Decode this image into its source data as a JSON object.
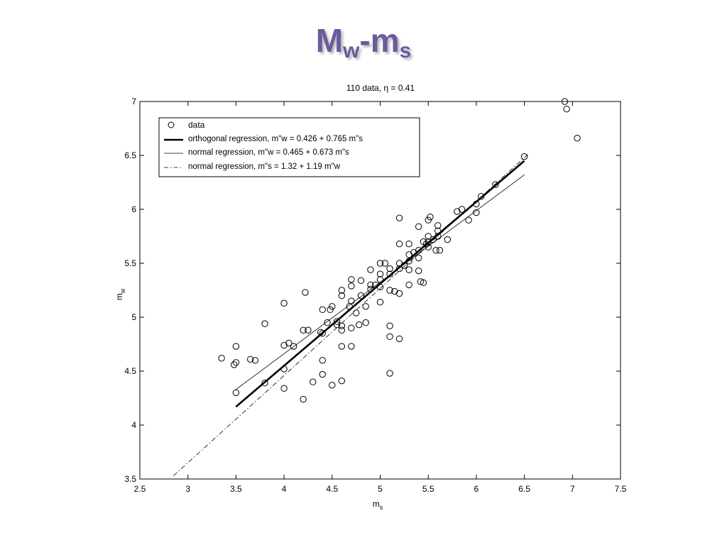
{
  "slide": {
    "title_main": "M",
    "title_sub1": "w",
    "title_mid": "-m",
    "title_sub2": "s"
  },
  "chart_data": {
    "type": "scatter",
    "title": "110 data, η = 0.41",
    "xlabel": "m",
    "xlabel_sub": "s",
    "ylabel": "m",
    "ylabel_sub": "w",
    "xlim": [
      2.5,
      7.5
    ],
    "ylim": [
      3.5,
      7
    ],
    "xticks": [
      "2.5",
      "3",
      "3.5",
      "4",
      "4.5",
      "5",
      "5.5",
      "6",
      "6.5",
      "7",
      "7.5"
    ],
    "yticks": [
      "3.5",
      "4",
      "4.5",
      "5",
      "5.5",
      "6",
      "6.5",
      "7"
    ],
    "grid": false,
    "legend_position": "top-left",
    "legend": [
      {
        "label": "data",
        "style": "marker-circle"
      },
      {
        "label": "orthogonal regression, m\"w = 0.426 + 0.765 m\"s",
        "style": "thick-solid"
      },
      {
        "label": "normal regression, m\"w = 0.465 + 0.673 m\"s",
        "style": "thin-solid"
      },
      {
        "label": "normal regression, m\"s = 1.32 + 1.19 m\"w",
        "style": "dash-dot"
      }
    ],
    "lines": [
      {
        "name": "orthogonal regression",
        "x": [
          3.5,
          6.5
        ],
        "y": [
          4.17,
          6.45
        ],
        "style": "thick-solid"
      },
      {
        "name": "normal regression m\"w",
        "x": [
          3.5,
          6.5
        ],
        "y": [
          4.33,
          6.32
        ],
        "style": "thin-solid"
      },
      {
        "name": "normal regression m\"s",
        "x": [
          2.85,
          6.55
        ],
        "y": [
          3.53,
          6.52
        ],
        "style": "dash-dot"
      }
    ],
    "points": [
      [
        3.35,
        4.62
      ],
      [
        3.48,
        4.56
      ],
      [
        3.5,
        4.58
      ],
      [
        3.5,
        4.73
      ],
      [
        3.5,
        4.3
      ],
      [
        3.65,
        4.61
      ],
      [
        3.7,
        4.6
      ],
      [
        3.8,
        4.94
      ],
      [
        3.8,
        4.39
      ],
      [
        4.0,
        5.13
      ],
      [
        4.0,
        4.74
      ],
      [
        4.0,
        4.52
      ],
      [
        4.0,
        4.34
      ],
      [
        4.05,
        4.76
      ],
      [
        4.1,
        4.73
      ],
      [
        4.2,
        4.88
      ],
      [
        4.2,
        4.24
      ],
      [
        4.22,
        5.23
      ],
      [
        4.25,
        4.88
      ],
      [
        4.3,
        4.4
      ],
      [
        4.38,
        4.86
      ],
      [
        4.4,
        5.07
      ],
      [
        4.4,
        4.85
      ],
      [
        4.4,
        4.6
      ],
      [
        4.4,
        4.47
      ],
      [
        4.45,
        4.95
      ],
      [
        4.48,
        5.07
      ],
      [
        4.5,
        5.1
      ],
      [
        4.5,
        4.37
      ],
      [
        4.55,
        4.96
      ],
      [
        4.6,
        5.25
      ],
      [
        4.6,
        5.2
      ],
      [
        4.6,
        4.92
      ],
      [
        4.6,
        4.88
      ],
      [
        4.6,
        4.73
      ],
      [
        4.6,
        4.41
      ],
      [
        4.68,
        5.1
      ],
      [
        4.7,
        5.35
      ],
      [
        4.7,
        5.29
      ],
      [
        4.7,
        5.15
      ],
      [
        4.7,
        4.9
      ],
      [
        4.7,
        4.73
      ],
      [
        4.75,
        5.04
      ],
      [
        4.78,
        4.93
      ],
      [
        4.8,
        5.34
      ],
      [
        4.8,
        5.2
      ],
      [
        4.85,
        4.95
      ],
      [
        4.9,
        5.44
      ],
      [
        4.9,
        5.3
      ],
      [
        4.9,
        5.26
      ],
      [
        5.0,
        5.5
      ],
      [
        5.0,
        5.4
      ],
      [
        5.0,
        5.35
      ],
      [
        5.0,
        5.28
      ],
      [
        5.0,
        5.14
      ],
      [
        5.05,
        5.5
      ],
      [
        5.1,
        5.45
      ],
      [
        5.1,
        5.4
      ],
      [
        5.1,
        5.25
      ],
      [
        5.1,
        4.92
      ],
      [
        5.1,
        4.82
      ],
      [
        5.1,
        4.48
      ],
      [
        5.15,
        5.24
      ],
      [
        5.2,
        5.92
      ],
      [
        5.2,
        5.68
      ],
      [
        5.2,
        5.5
      ],
      [
        5.2,
        5.45
      ],
      [
        5.2,
        5.22
      ],
      [
        5.2,
        4.8
      ],
      [
        5.25,
        5.48
      ],
      [
        5.3,
        5.68
      ],
      [
        5.3,
        5.58
      ],
      [
        5.3,
        5.52
      ],
      [
        5.3,
        5.44
      ],
      [
        5.3,
        5.3
      ],
      [
        5.35,
        5.6
      ],
      [
        5.4,
        5.84
      ],
      [
        5.4,
        5.62
      ],
      [
        5.4,
        5.55
      ],
      [
        5.4,
        5.43
      ],
      [
        5.42,
        5.33
      ],
      [
        5.45,
        5.32
      ],
      [
        5.48,
        5.68
      ],
      [
        5.5,
        5.9
      ],
      [
        5.5,
        5.75
      ],
      [
        5.5,
        5.7
      ],
      [
        5.5,
        5.65
      ],
      [
        5.52,
        5.93
      ],
      [
        5.55,
        5.72
      ],
      [
        5.58,
        5.62
      ],
      [
        5.6,
        5.85
      ],
      [
        5.6,
        5.8
      ],
      [
        5.6,
        5.75
      ],
      [
        5.62,
        5.62
      ],
      [
        5.7,
        5.72
      ],
      [
        5.8,
        5.98
      ],
      [
        5.85,
        6.0
      ],
      [
        5.92,
        5.9
      ],
      [
        6.0,
        6.05
      ],
      [
        6.0,
        5.97
      ],
      [
        6.05,
        6.12
      ],
      [
        6.2,
        6.23
      ],
      [
        6.5,
        6.49
      ],
      [
        6.92,
        7.0
      ],
      [
        6.94,
        6.93
      ],
      [
        7.05,
        6.66
      ],
      [
        5.45,
        5.7
      ],
      [
        4.95,
        5.3
      ],
      [
        4.85,
        5.1
      ],
      [
        4.55,
        4.93
      ]
    ]
  }
}
